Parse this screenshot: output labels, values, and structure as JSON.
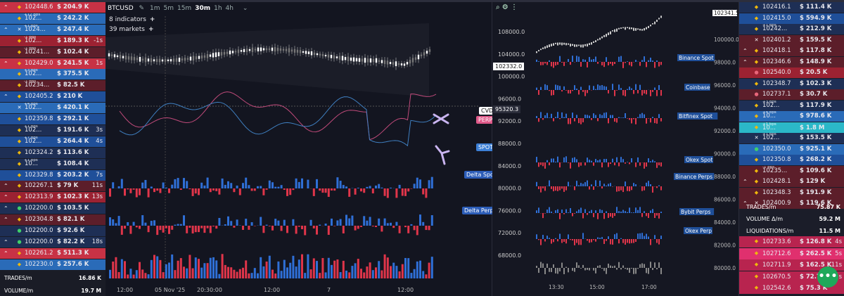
{
  "left": {
    "trades": [
      {
        "p": "102448.6",
        "a": "$ 204.9 K",
        "age": "",
        "note": "",
        "side": "sell",
        "arrow": "^",
        "icon": "◆",
        "iconColor": "#f0b90b"
      },
      {
        "p": "102...",
        "a": "$ 242.2 K",
        "age": "",
        "note": "+12 bps",
        "side": "buy",
        "arrow": "",
        "icon": "◆",
        "iconColor": "#f0b90b"
      },
      {
        "p": "1024...",
        "a": "$ 247.4 K",
        "age": "",
        "note": "+1 bps",
        "side": "buy",
        "arrow": "^",
        "icon": "✕",
        "iconColor": "#ffffff"
      },
      {
        "p": "102...",
        "a": "$ 189.3 K",
        "age": "-1s",
        "note": "-1 bps",
        "side": "sellb",
        "arrow": "",
        "icon": "◆",
        "iconColor": "#f0b90b"
      },
      {
        "p": "10241...",
        "a": "$ 102.4 K",
        "age": "",
        "note": "-1 bps",
        "side": "selld",
        "arrow": "",
        "icon": "◆",
        "iconColor": "#f0b90b"
      },
      {
        "p": "102429.0",
        "a": "$ 241.5 K",
        "age": "1s",
        "note": "",
        "side": "sell",
        "arrow": "^",
        "icon": "◆",
        "iconColor": "#f0b90b"
      },
      {
        "p": "102...",
        "a": "$ 375.5 K",
        "age": "",
        "note": "+3 bps",
        "side": "buy",
        "arrow": "",
        "icon": "◆",
        "iconColor": "#f0b90b"
      },
      {
        "p": "10234...",
        "a": "$ 82.5 K",
        "age": "",
        "note": "-1 bps",
        "side": "selld",
        "arrow": "",
        "icon": "◆",
        "iconColor": "#f0b90b"
      },
      {
        "p": "102405.2",
        "a": "$ 210 K",
        "age": "",
        "note": "",
        "side": "buyb",
        "arrow": "^",
        "icon": "◆",
        "iconColor": "#f0b90b"
      },
      {
        "p": "102...",
        "a": "$ 420.1 K",
        "age": "",
        "note": "+4 bps",
        "side": "buy",
        "arrow": "",
        "icon": "✕",
        "iconColor": "#ffffff"
      },
      {
        "p": "102359.8",
        "a": "$ 292.1 K",
        "age": "",
        "note": "",
        "side": "buyb",
        "arrow": "",
        "icon": "◆",
        "iconColor": "#f0b90b"
      },
      {
        "p": "102...",
        "a": "$ 191.6 K",
        "age": "3s",
        "note": "+1 bps",
        "side": "buyd",
        "arrow": "",
        "icon": "◆",
        "iconColor": "#f0b90b"
      },
      {
        "p": "102...",
        "a": "$ 264.4 K",
        "age": "4s",
        "note": "+7 bps",
        "side": "buyb",
        "arrow": "",
        "icon": "◆",
        "iconColor": "#f0b90b"
      },
      {
        "p": "102324.2",
        "a": "$ 113.6 K",
        "age": "",
        "note": "",
        "side": "buyd",
        "arrow": "",
        "icon": "◆",
        "iconColor": "#f0b90b"
      },
      {
        "p": "10...",
        "a": "$ 108.4 K",
        "age": "",
        "note": "+1 bps",
        "side": "buyd",
        "arrow": "",
        "icon": "◆",
        "iconColor": "#f0b90b"
      },
      {
        "p": "102329.8",
        "a": "$ 203.2 K",
        "age": "7s",
        "note": "",
        "side": "buyb",
        "arrow": "",
        "icon": "◆",
        "iconColor": "#f0b90b"
      },
      {
        "p": "102267.1",
        "a": "$ 79 K",
        "age": "11s",
        "note": "",
        "side": "selld",
        "arrow": "^",
        "icon": "◆",
        "iconColor": "#f0b90b"
      },
      {
        "p": "102313.9",
        "a": "$ 102.3 K",
        "age": "13s",
        "note": "",
        "side": "sellb",
        "arrow": "^",
        "icon": "◆",
        "iconColor": "#f0b90b"
      },
      {
        "p": "102200.0",
        "a": "$ 103.5 K",
        "age": "",
        "note": "",
        "side": "buyd",
        "arrow": "^",
        "icon": "●",
        "iconColor": "#3fcf6a"
      },
      {
        "p": "102304.8",
        "a": "$ 82.1 K",
        "age": "",
        "note": "",
        "side": "selld",
        "arrow": "^",
        "icon": "◆",
        "iconColor": "#f0b90b"
      },
      {
        "p": "102200.0",
        "a": "$ 92.6 K",
        "age": "",
        "note": "",
        "side": "buyd",
        "arrow": "",
        "icon": "●",
        "iconColor": "#3fcf6a"
      },
      {
        "p": "102200.0",
        "a": "$ 82.2 K",
        "age": "18s",
        "note": "",
        "side": "buyd",
        "arrow": "^",
        "icon": "●",
        "iconColor": "#3fcf6a"
      },
      {
        "p": "102261.2",
        "a": "$ 511.3 K",
        "age": "",
        "note": "",
        "side": "sell",
        "arrow": "^",
        "icon": "◆",
        "iconColor": "#f0b90b"
      },
      {
        "p": "102230.0",
        "a": "$ 257.6 K",
        "age": "",
        "note": "",
        "side": "buy",
        "arrow": "",
        "icon": "◆",
        "iconColor": "#f0b90b"
      }
    ],
    "stats": [
      {
        "k": "TRADES/m",
        "v": "16.86 K"
      },
      {
        "k": "VOLUME/m",
        "v": "19.7 M"
      }
    ]
  },
  "toolbar": {
    "symbol": "BTCUSD",
    "timeframes": [
      "1m",
      "5m",
      "15m",
      "30m",
      "1h",
      "4h"
    ],
    "active": "30m"
  },
  "indicators": {
    "count_label": "8 indicators",
    "markets_label": "39 markets"
  },
  "main_labels": {
    "cvd": "CVD",
    "perp": "PERP",
    "spot": "SPOT",
    "delta_spot": "Delta Spot",
    "delta_perps": "Delta Perps"
  },
  "main_price_labels": {
    "p1": "102332.0",
    "p2": "95320.3"
  },
  "xaxis_main": [
    "12:00",
    "05 Nov '25",
    "20:30:00",
    "12:00",
    "7",
    "12:00"
  ],
  "right": {
    "price_ticks": [
      "108000.0",
      "104000.0",
      "100000.0",
      "96000.0",
      "92000.0",
      "88000.0",
      "84000.0",
      "80000.0",
      "76000.0",
      "72000.0",
      "68000.0"
    ],
    "price_ticks2": [
      "102341.5",
      "100000.0",
      "98000.0",
      "96000.0",
      "94000.0",
      "92000.0",
      "90000.0",
      "88000.0",
      "86000.0",
      "84000.0",
      "82000.0",
      "80000.0"
    ],
    "exchanges": [
      "Binance Spot",
      "Coinbase",
      "Bitfinex Spot",
      "Okex Spot",
      "Binance Perps",
      "Bybit Perps",
      "Okex Perp"
    ],
    "xaxis": [
      "13:30",
      "15:00",
      "17:00"
    ]
  },
  "orderbook": {
    "rows": [
      {
        "p": "102416.1",
        "a": "$ 111.4 K",
        "age": "",
        "note": "",
        "side": "buyd",
        "arrow": "",
        "icon": "◆",
        "iconColor": "#f0b90b"
      },
      {
        "p": "102415.0",
        "a": "$ 594.9 K",
        "age": "",
        "note": "",
        "side": "buyb",
        "arrow": "",
        "icon": "◆",
        "iconColor": "#f0b90b"
      },
      {
        "p": "10242...",
        "a": "$ 212.9 K",
        "age": "",
        "note": "+1 bps",
        "side": "buyd",
        "arrow": "",
        "icon": "◆",
        "iconColor": "#f0b90b"
      },
      {
        "p": "102401.2",
        "a": "$ 159.5 K",
        "age": "",
        "note": "",
        "side": "selld",
        "arrow": "",
        "icon": "✕",
        "iconColor": "#ffffff"
      },
      {
        "p": "102418.1",
        "a": "$ 117.8 K",
        "age": "",
        "note": "",
        "side": "selld",
        "arrow": "^",
        "icon": "◆",
        "iconColor": "#f0b90b"
      },
      {
        "p": "102346.6",
        "a": "$ 148.9 K",
        "age": "",
        "note": "",
        "side": "selld",
        "arrow": "^",
        "icon": "◆",
        "iconColor": "#f0b90b"
      },
      {
        "p": "102540.0",
        "a": "$ 20.5 K",
        "age": "",
        "note": "",
        "side": "sellb",
        "arrow": "",
        "icon": "●",
        "iconColor": "#e8667a"
      },
      {
        "p": "102348.7",
        "a": "$ 102.3 K",
        "age": "",
        "note": "",
        "side": "buyd",
        "arrow": "",
        "icon": "◆",
        "iconColor": "#f0b90b"
      },
      {
        "p": "102737.1",
        "a": "$ 30.7 K",
        "age": "",
        "note": "",
        "side": "selld",
        "arrow": "",
        "icon": "●",
        "iconColor": "#e8667a"
      },
      {
        "p": "102...",
        "a": "$ 117.9 K",
        "age": "",
        "note": "+3 bps",
        "side": "buyd",
        "arrow": "",
        "icon": "◆",
        "iconColor": "#f0b90b"
      },
      {
        "p": "10...",
        "a": "$ 978.6 K",
        "age": "",
        "note": "+4 bps",
        "side": "buy",
        "arrow": "",
        "icon": "◆",
        "iconColor": "#f0b90b"
      },
      {
        "p": "10...",
        "a": "$ 1.8 M",
        "age": "",
        "note": "+1 bps",
        "side": "cyan",
        "arrow": "",
        "icon": "◆",
        "iconColor": "#f0b90b"
      },
      {
        "p": "102...",
        "a": "$ 153.5 K",
        "age": "",
        "note": "+1 bps",
        "side": "buyd",
        "arrow": "",
        "icon": "✕",
        "iconColor": "#ffffff"
      },
      {
        "p": "102350.0",
        "a": "$ 925.1 K",
        "age": "",
        "note": "",
        "side": "buy",
        "arrow": "",
        "icon": "●",
        "iconColor": "#3fcf6a"
      },
      {
        "p": "102350.8",
        "a": "$ 268.2 K",
        "age": "",
        "note": "",
        "side": "buyb",
        "arrow": "",
        "icon": "◆",
        "iconColor": "#f0b90b"
      },
      {
        "p": "10235...",
        "a": "$ 109.6 K",
        "age": "",
        "note": "-1 bps",
        "side": "selld",
        "arrow": "",
        "icon": "◆",
        "iconColor": "#f0b90b"
      },
      {
        "p": "102428.1",
        "a": "$ 129 K",
        "age": "",
        "note": "",
        "side": "selld",
        "arrow": "^",
        "icon": "◆",
        "iconColor": "#f0b90b"
      },
      {
        "p": "102348.3",
        "a": "$ 191.9 K",
        "age": "",
        "note": "",
        "side": "selld",
        "arrow": "",
        "icon": "◆",
        "iconColor": "#f0b90b"
      },
      {
        "p": "102400.9",
        "a": "$ 119.6 K",
        "age": "",
        "note": "",
        "side": "selld",
        "arrow": "^",
        "icon": "✕",
        "iconColor": "#ffffff"
      }
    ],
    "stats": [
      {
        "k": "TRADES/m",
        "v": "75.87 K"
      },
      {
        "k": "VOLUME Δ/m",
        "v": "59.2 M"
      },
      {
        "k": "LIQUIDATIONS/m",
        "v": "11.5 M"
      }
    ],
    "liqs": [
      {
        "p": "102733.6",
        "a": "$ 126.8 K",
        "age": "4s",
        "side": "liq1",
        "icon": "◆",
        "iconColor": "#f0b90b"
      },
      {
        "p": "102712.6",
        "a": "$ 262.5 K",
        "age": "5s",
        "side": "liq2",
        "icon": "◆",
        "iconColor": "#f0b90b"
      },
      {
        "p": "102711.9",
        "a": "$ 162.5 K",
        "age": "11s",
        "side": "liq1",
        "icon": "◆",
        "iconColor": "#f0b90b"
      },
      {
        "p": "102670.5",
        "a": "$ 72.7 K",
        "age": "15s",
        "side": "liq1",
        "icon": "◆",
        "iconColor": "#f0b90b"
      },
      {
        "p": "102542.6",
        "a": "$ 75.3 K",
        "age": "",
        "side": "liq1",
        "icon": "◆",
        "iconColor": "#f0b90b"
      }
    ]
  },
  "colors": {
    "up": "#2f6fd6",
    "down": "#e0354a",
    "liq": "#c9245a",
    "fab": "#1fa85a"
  },
  "fab_icon": "•••"
}
